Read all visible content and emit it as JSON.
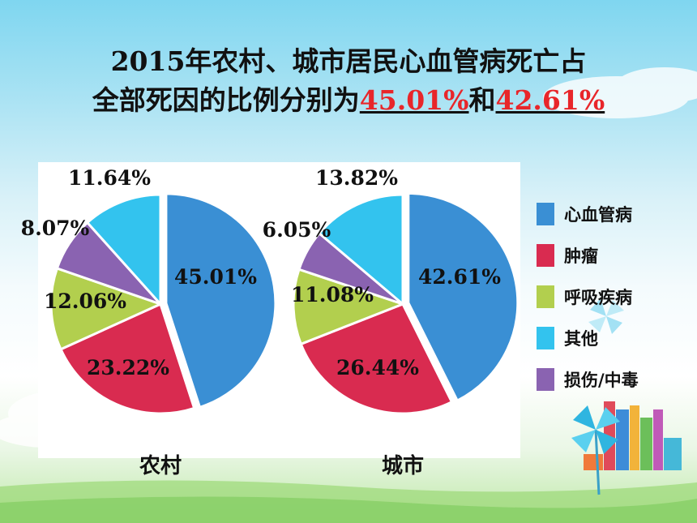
{
  "title": {
    "line1": "2015年农村、城市居民心血管病死亡占",
    "line2_prefix": "全部死因的比例分别为",
    "rural_highlight": "45.01%",
    "conjunction": "和",
    "urban_highlight": "42.61%"
  },
  "legend": [
    {
      "label": "心血管病",
      "color": "#3a8fd4"
    },
    {
      "label": "肿瘤",
      "color": "#d92b50"
    },
    {
      "label": "呼吸疾病",
      "color": "#b2cf4e"
    },
    {
      "label": "其他",
      "color": "#33c3ee"
    },
    {
      "label": "损伤/中毒",
      "color": "#8a63b1"
    }
  ],
  "chart_data": [
    {
      "type": "pie",
      "title": "农村",
      "categories": [
        "心血管病",
        "肿瘤",
        "呼吸疾病",
        "损伤/中毒",
        "其他"
      ],
      "values": [
        45.01,
        23.22,
        12.06,
        8.07,
        11.64
      ],
      "labels": [
        "45.01%",
        "23.22%",
        "12.06%",
        "8.07%",
        "11.64%"
      ],
      "exploded": "心血管病"
    },
    {
      "type": "pie",
      "title": "城市",
      "categories": [
        "心血管病",
        "肿瘤",
        "呼吸疾病",
        "损伤/中毒",
        "其他"
      ],
      "values": [
        42.61,
        26.44,
        11.08,
        6.05,
        13.82
      ],
      "labels": [
        "42.61%",
        "26.44%",
        "11.08%",
        "6.05%",
        "13.82%"
      ],
      "exploded": "心血管病"
    }
  ]
}
